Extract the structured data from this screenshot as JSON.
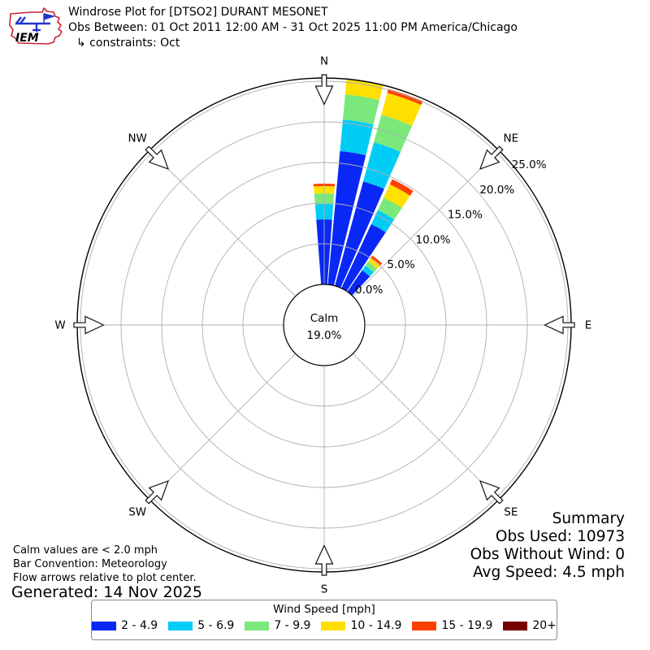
{
  "header": {
    "logo": {
      "text": "IEM"
    },
    "title": "Windrose Plot for [DTSO2] DURANT MESONET",
    "subtitle": "Obs Between: 01 Oct 2011 12:00 AM - 31 Oct 2025 11:00 PM America/Chicago",
    "constraints": "↳ constraints: Oct"
  },
  "chart_data": {
    "type": "windrose",
    "title": "Windrose Plot for [DTSO2] DURANT MESONET",
    "calm_center_label": "Calm",
    "calm_center_value": "19.0%",
    "compass_labels": [
      "N",
      "NE",
      "E",
      "SE",
      "S",
      "SW",
      "W",
      "NW"
    ],
    "compass_azimuths": [
      0,
      45,
      90,
      135,
      180,
      225,
      270,
      315
    ],
    "ring_percents": [
      0,
      5,
      10,
      15,
      20,
      25
    ],
    "ring_labels": [
      "0.0%",
      "5.0%",
      "10.0%",
      "15.0%",
      "20.0%",
      "25.0%"
    ],
    "ring_label_azimuth_deg": 52,
    "rmax_percent": 25.4,
    "bar_width_deg": 8.6,
    "grid_on": true,
    "legend_title": "Wind Speed [mph]",
    "speed_bins": [
      {
        "label": "2 - 4.9",
        "color": "#0a28f5"
      },
      {
        "label": "5 - 6.9",
        "color": "#00ccf5"
      },
      {
        "label": "7 - 9.9",
        "color": "#7be87b"
      },
      {
        "label": "10 - 14.9",
        "color": "#ffe000"
      },
      {
        "label": "15 - 19.9",
        "color": "#ff4000"
      },
      {
        "label": "20+",
        "color": "#7a0000"
      }
    ],
    "bars": [
      {
        "direction": "N",
        "azimuth_deg": 0,
        "segments_pct": [
          8.0,
          1.9,
          1.3,
          0.9,
          0.3,
          0
        ],
        "total_pct": 12.4
      },
      {
        "direction": "N10",
        "azimuth_deg": 9.5,
        "segments_pct": [
          16.5,
          3.9,
          3.1,
          1.9,
          0,
          0
        ],
        "total_pct": 25.4
      },
      {
        "direction": "N20",
        "azimuth_deg": 19.5,
        "segments_pct": [
          13.3,
          5.0,
          3.5,
          2.8,
          0.5,
          0
        ],
        "total_pct": 25.1
      },
      {
        "direction": "N30",
        "azimuth_deg": 29.3,
        "segments_pct": [
          8.7,
          1.9,
          1.7,
          1.8,
          0.7,
          0
        ],
        "total_pct": 14.8
      },
      {
        "direction": "N39",
        "azimuth_deg": 39.0,
        "segments_pct": [
          3.2,
          0.7,
          0.6,
          0.6,
          0.3,
          0
        ],
        "total_pct": 5.4
      }
    ]
  },
  "annotations": {
    "calm_note": "Calm values are < 2.0 mph",
    "convention_note": "Bar Convention: Meteorology",
    "arrows_note": "Flow arrows relative to plot center.",
    "generated": "Generated: 14 Nov 2025"
  },
  "summary": {
    "title": "Summary",
    "obs_used": "Obs Used: 10973",
    "obs_without_wind": "Obs Without Wind: 0",
    "avg_speed": "Avg Speed: 4.5 mph"
  }
}
